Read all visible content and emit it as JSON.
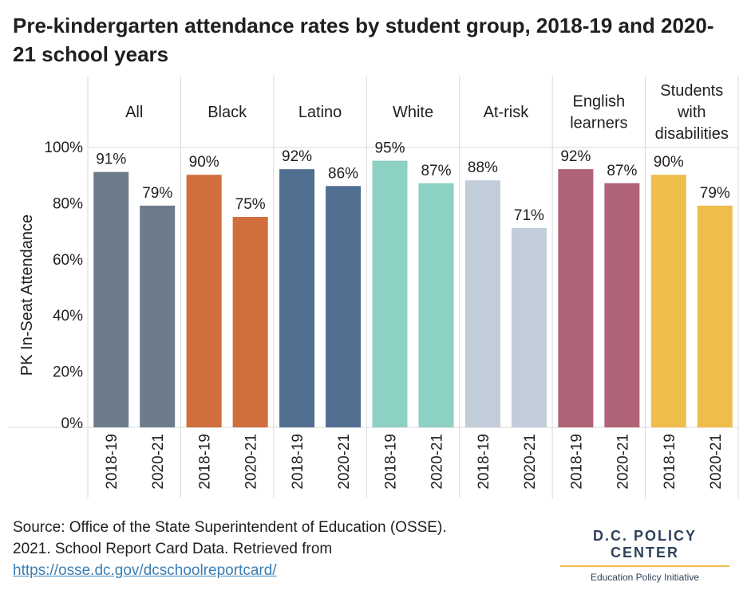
{
  "title": "Pre-kindergarten attendance rates by student group, 2018-19 and 2020-21 school years",
  "source": {
    "text_line1": "Source: Office of the State Superintendent of Education (OSSE).",
    "text_line2": "2021. School Report Card Data. Retrieved from",
    "link": "https://osse.dc.gov/dcschoolreportcard/"
  },
  "logo": {
    "name": "D.C. POLICY CENTER",
    "subtitle": "Education Policy Initiative"
  },
  "chart_data": {
    "type": "bar",
    "ylabel": "PK In-Seat Attendance",
    "ylim": [
      0,
      100
    ],
    "yticks": [
      "0%",
      "20%",
      "40%",
      "60%",
      "80%",
      "100%"
    ],
    "ytick_values": [
      0,
      20,
      40,
      60,
      80,
      100
    ],
    "grid": "vertical separators between groups",
    "panels": [
      {
        "group": [
          "All"
        ],
        "color": "#6d7b8a",
        "bars": [
          {
            "year": "2018-19",
            "value": 91,
            "label": "91%"
          },
          {
            "year": "2020-21",
            "value": 79,
            "label": "79%"
          }
        ]
      },
      {
        "group": [
          "Black"
        ],
        "color": "#d06e3c",
        "bars": [
          {
            "year": "2018-19",
            "value": 90,
            "label": "90%"
          },
          {
            "year": "2020-21",
            "value": 75,
            "label": "75%"
          }
        ]
      },
      {
        "group": [
          "Latino"
        ],
        "color": "#516f91",
        "bars": [
          {
            "year": "2018-19",
            "value": 92,
            "label": "92%"
          },
          {
            "year": "2020-21",
            "value": 86,
            "label": "86%"
          }
        ]
      },
      {
        "group": [
          "White"
        ],
        "color": "#8dd0c4",
        "bars": [
          {
            "year": "2018-19",
            "value": 95,
            "label": "95%"
          },
          {
            "year": "2020-21",
            "value": 87,
            "label": "87%"
          }
        ]
      },
      {
        "group": [
          "At-risk"
        ],
        "color": "#c1cdd8",
        "bars": [
          {
            "year": "2018-19",
            "value": 88,
            "label": "88%"
          },
          {
            "year": "2020-21",
            "value": 71,
            "label": "71%"
          }
        ]
      },
      {
        "group": [
          "English",
          "learners"
        ],
        "color": "#b06277",
        "bars": [
          {
            "year": "2018-19",
            "value": 92,
            "label": "92%"
          },
          {
            "year": "2020-21",
            "value": 87,
            "label": "87%"
          }
        ]
      },
      {
        "group": [
          "Students",
          "with",
          "disabilities"
        ],
        "color": "#efbd4b",
        "bars": [
          {
            "year": "2018-19",
            "value": 90,
            "label": "90%"
          },
          {
            "year": "2020-21",
            "value": 79,
            "label": "79%"
          }
        ]
      }
    ]
  }
}
